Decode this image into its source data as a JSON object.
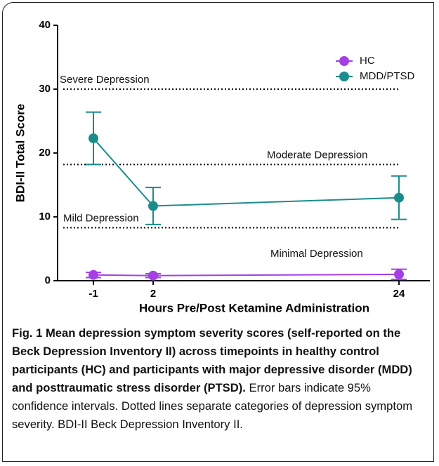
{
  "chart_data": {
    "type": "line",
    "y_label": "BDI-II Total Score",
    "x_label": "Hours Pre/Post Ketamine Administration",
    "categories": [
      "-1",
      "2",
      "24"
    ],
    "series": [
      {
        "name": "HC",
        "color": "#a43fe6",
        "values": [
          0.9,
          0.8,
          1.0
        ],
        "errors": [
          0.4,
          0.3,
          0.8
        ]
      },
      {
        "name": "MDD/PTSD",
        "color": "#1b8c8c",
        "values": [
          22.3,
          11.7,
          13.0
        ],
        "errors": [
          4.1,
          2.9,
          3.4
        ]
      }
    ],
    "ylim": [
      0,
      40
    ],
    "yticks": [
      0,
      10,
      20,
      30,
      40
    ],
    "reference_lines": [
      {
        "value": 30,
        "label": "Severe Depression"
      },
      {
        "value": 18.2,
        "label": "Moderate Depression"
      },
      {
        "value": 8.3,
        "label": "Mild Depression"
      }
    ],
    "annotation": "Minimal Depression",
    "legend": "upper right"
  },
  "caption": {
    "bold": "Fig. 1 Mean depression symptom severity scores (self-reported on the Beck Depression Inventory II) across timepoints in healthy control participants (HC) and participants with major depressive disorder (MDD) and posttraumatic stress disorder (PTSD).",
    "text": "Error bars indicate 95% confidence intervals. Dotted lines separate categories of depression symptom severity. BDI-II Beck Depression Inventory II."
  }
}
